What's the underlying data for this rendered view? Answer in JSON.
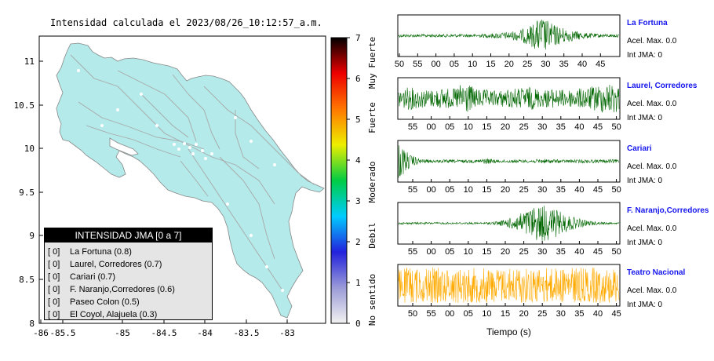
{
  "map": {
    "title": "Intensidad calculada el 2023/08/26_10:12:57_a.m.",
    "lon_ticks": [
      "-86",
      "-85.5",
      "-85",
      "-84.5",
      "-84",
      "-83.5",
      "-83"
    ],
    "lat_ticks": [
      "8",
      "8.5",
      "9",
      "9.5",
      "10",
      "10.5",
      "11"
    ],
    "land_color": "#b4eaea",
    "legend": {
      "title": "INTENSIDAD JMA [0 a 7]",
      "rows": [
        {
          "value": "[ 0]",
          "label": "La Fortuna (0.8)"
        },
        {
          "value": "[ 0]",
          "label": "Laurel, Corredores (0.7)"
        },
        {
          "value": "[ 0]",
          "label": "Cariari (0.7)"
        },
        {
          "value": "[ 0]",
          "label": "F. Naranjo,Corredores (0.6)"
        },
        {
          "value": "[ 0]",
          "label": "Paseo Colon (0.5)"
        },
        {
          "value": "[ 0]",
          "label": "El Coyol, Alajuela (0.3)"
        }
      ]
    }
  },
  "colorbar": {
    "ticks": [
      "0",
      "1",
      "2",
      "3",
      "4",
      "5",
      "6",
      "7"
    ],
    "categories": [
      "No sentido",
      "Debil",
      "Moderado",
      "Fuerte",
      "Muy Fuerte"
    ],
    "colors": [
      "#f2f2f2",
      "#9a9ad8",
      "#2222dd",
      "#00ccff",
      "#00cc44",
      "#eeee00",
      "#ff7700",
      "#ee0000",
      "#000000"
    ]
  },
  "chart_data": {
    "type": "line",
    "xlabel": "Tiempo (s)",
    "trace_color_default": "#006600",
    "trace_color_highlight": "#ffaa00",
    "stations": [
      {
        "name": "La Fortuna",
        "acel_label": "Acel. Max. 0.0",
        "jma_label": "Int JMA: 0",
        "color": "#006600",
        "ticks": [
          "50",
          "55",
          "00",
          "05",
          "10",
          "15",
          "20",
          "25",
          "30",
          "35",
          "40",
          "45"
        ],
        "amplitude_envelope": [
          0.08,
          0.08,
          0.08,
          0.08,
          0.08,
          0.08,
          0.08,
          0.08,
          0.1,
          0.15,
          0.2,
          0.3,
          0.55,
          1.0,
          0.6,
          0.4,
          0.25,
          0.15,
          0.1,
          0.08,
          0.08
        ]
      },
      {
        "name": "Laurel, Corredores",
        "acel_label": "Acel. Max. 0.0",
        "jma_label": "Int JMA: 0",
        "color": "#006600",
        "ticks": [
          "55",
          "00",
          "05",
          "10",
          "15",
          "20",
          "25",
          "30",
          "35",
          "40",
          "45",
          "50"
        ],
        "amplitude_envelope": [
          0.5,
          0.6,
          0.5,
          0.45,
          0.55,
          0.5,
          0.9,
          0.5,
          0.45,
          0.4,
          0.5,
          0.55,
          0.6,
          0.45,
          0.5,
          0.45,
          0.5,
          0.55,
          0.7,
          0.8,
          0.75
        ]
      },
      {
        "name": "Cariari",
        "acel_label": "Acel. Max. 0.0",
        "jma_label": "Int JMA: 0",
        "color": "#006600",
        "ticks": [
          "55",
          "00",
          "05",
          "10",
          "15",
          "20",
          "25",
          "30",
          "35",
          "40",
          "45",
          "50"
        ],
        "amplitude_envelope": [
          1.0,
          0.35,
          0.12,
          0.08,
          0.08,
          0.08,
          0.08,
          0.08,
          0.15,
          0.08,
          0.08,
          0.08,
          0.08,
          0.12,
          0.1,
          0.08,
          0.08,
          0.1,
          0.08,
          0.1,
          0.1
        ]
      },
      {
        "name": "F. Naranjo,Corredores",
        "acel_label": "Acel. Max. 0.0",
        "jma_label": "Int JMA: 0",
        "color": "#006600",
        "ticks": [
          "55",
          "00",
          "05",
          "10",
          "15",
          "20",
          "25",
          "30",
          "35",
          "40",
          "45",
          "50"
        ],
        "amplitude_envelope": [
          0.05,
          0.05,
          0.05,
          0.05,
          0.05,
          0.05,
          0.05,
          0.05,
          0.05,
          0.1,
          0.25,
          0.5,
          0.8,
          1.0,
          0.8,
          0.5,
          0.3,
          0.15,
          0.08,
          0.05,
          0.05
        ]
      },
      {
        "name": "Teatro Nacional",
        "acel_label": "Acel. Max. 0.0",
        "jma_label": "Int JMA: 0",
        "color": "#ffaa00",
        "ticks": [
          "50",
          "55",
          "00",
          "05",
          "10",
          "15",
          "20",
          "25",
          "30",
          "35",
          "40",
          "45"
        ],
        "amplitude_envelope": [
          0.9,
          0.95,
          0.9,
          0.95,
          0.9,
          0.9,
          0.95,
          0.9,
          0.95,
          0.9,
          0.9,
          0.95,
          0.9,
          0.95,
          0.9,
          0.9,
          0.95,
          0.9,
          0.95,
          0.9,
          0.9
        ]
      }
    ]
  }
}
